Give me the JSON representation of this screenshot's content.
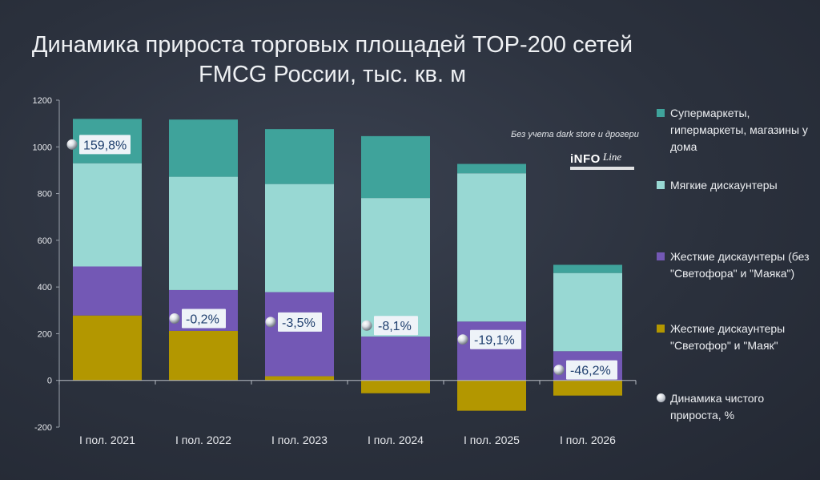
{
  "title": "Динамика прироста торговых площадей TOP-200 сетей FMCG России, тыс. кв. м",
  "note": "Без учета dark store и дрогери",
  "logo": {
    "word": "iNFO",
    "script": "Line"
  },
  "colors": {
    "supermarkets": "#3fa39b",
    "soft_discounters": "#98d8d3",
    "hard_discounters": "#7358b5",
    "svetofor_mayak": "#b39700",
    "bead_label_bg": "#eef3f8",
    "bead_label_text": "#1f3f6e",
    "axis_text": "#e5e7eb"
  },
  "legend": [
    {
      "key": "supermarkets",
      "icon": "square",
      "label": "Супермаркеты, гипермаркеты, магазины у дома"
    },
    {
      "key": "soft_discounters",
      "icon": "square",
      "label": "Мягкие дискаунтеры"
    },
    {
      "key": "hard_discounters",
      "icon": "square",
      "label": "Жесткие дискаунтеры (без \"Светофора\" и \"Маяка\")"
    },
    {
      "key": "svetofor_mayak",
      "icon": "square",
      "label": "Жесткие дискаунтеры \"Светофор\" и \"Маяк\""
    },
    {
      "key": "net_growth",
      "icon": "bead",
      "label": "Динамика чистого прироста, %"
    }
  ],
  "chart_data": {
    "type": "bar",
    "stacked": true,
    "categories": [
      "I пол. 2021",
      "I пол. 2022",
      "I пол. 2023",
      "I пол. 2024",
      "I пол. 2025",
      "I пол. 2026"
    ],
    "ylim": [
      -200,
      1200
    ],
    "yticks": [
      -200,
      0,
      200,
      400,
      600,
      800,
      1000,
      1200
    ],
    "grid": false,
    "legend_position": "right",
    "series": [
      {
        "key": "svetofor_mayak",
        "name": "Жесткие дискаунтеры \"Светофор\" и \"Маяк\"",
        "values": [
          278,
          212,
          18,
          -55,
          -130,
          -65
        ]
      },
      {
        "key": "hard_discounters",
        "name": "Жесткие дискаунтеры (без \"Светофора\" и \"Маяка\")",
        "values": [
          210,
          175,
          360,
          188,
          252,
          125
        ]
      },
      {
        "key": "soft_discounters",
        "name": "Мягкие дискаунтеры",
        "values": [
          442,
          485,
          463,
          593,
          635,
          335
        ]
      },
      {
        "key": "supermarkets",
        "name": "Супермаркеты, гипермаркеты, магазины у дома",
        "values": [
          190,
          245,
          235,
          265,
          40,
          35
        ]
      }
    ],
    "net_growth": {
      "name": "Динамика чистого прироста, %",
      "labels": [
        "159,8%",
        "-0,2%",
        "-3,5%",
        "-8,1%",
        "-19,1%",
        "-46,2%"
      ],
      "values": [
        159.8,
        -0.2,
        -3.5,
        -8.1,
        -19.1,
        -46.2
      ],
      "y": [
        1010,
        265,
        250,
        235,
        175,
        45
      ]
    }
  }
}
